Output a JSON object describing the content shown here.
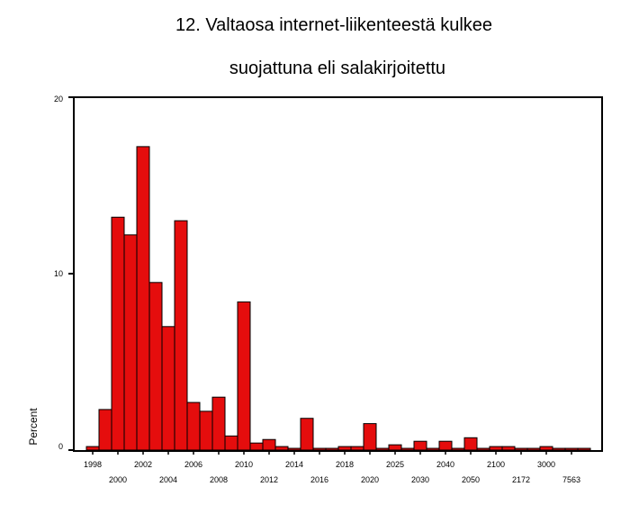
{
  "chart_data": {
    "type": "bar",
    "title_lines": [
      "12. Valtaosa internet-liikenteestä kulkee",
      "suojattuna eli salakirjoitettu"
    ],
    "ylabel": "Percent",
    "xlabel": "",
    "ylim": [
      0,
      20
    ],
    "yticks": [
      "0",
      "10",
      "20"
    ],
    "bar_color": "#e50d0d",
    "grid": false,
    "values": [
      0.2,
      2.3,
      13.2,
      12.2,
      17.2,
      9.5,
      7.0,
      13.0,
      2.7,
      2.2,
      3.0,
      0.8,
      8.4,
      0.4,
      0.6,
      0.2,
      0.1,
      1.8,
      0.1,
      0.1,
      0.2,
      0.2,
      1.5,
      0.1,
      0.3,
      0.1,
      0.5,
      0.1,
      0.5,
      0.1,
      0.7,
      0.1,
      0.2,
      0.2,
      0.1,
      0.1,
      0.2,
      0.1,
      0.1,
      0.1
    ],
    "xtick_labels_top": [
      {
        "bar": 0,
        "label": "1998"
      },
      {
        "bar": 4,
        "label": "2002"
      },
      {
        "bar": 8,
        "label": "2006"
      },
      {
        "bar": 12,
        "label": "2010"
      },
      {
        "bar": 16,
        "label": "2014"
      },
      {
        "bar": 20,
        "label": "2018"
      },
      {
        "bar": 24,
        "label": "2025"
      },
      {
        "bar": 28,
        "label": "2040"
      },
      {
        "bar": 32,
        "label": "2100"
      },
      {
        "bar": 36,
        "label": "3000"
      }
    ],
    "xtick_labels_bottom": [
      {
        "bar": 2,
        "label": "2000"
      },
      {
        "bar": 6,
        "label": "2004"
      },
      {
        "bar": 10,
        "label": "2008"
      },
      {
        "bar": 14,
        "label": "2012"
      },
      {
        "bar": 18,
        "label": "2016"
      },
      {
        "bar": 22,
        "label": "2020"
      },
      {
        "bar": 26,
        "label": "2030"
      },
      {
        "bar": 30,
        "label": "2050"
      },
      {
        "bar": 34,
        "label": "2172"
      },
      {
        "bar": 38,
        "label": "7563"
      }
    ]
  }
}
